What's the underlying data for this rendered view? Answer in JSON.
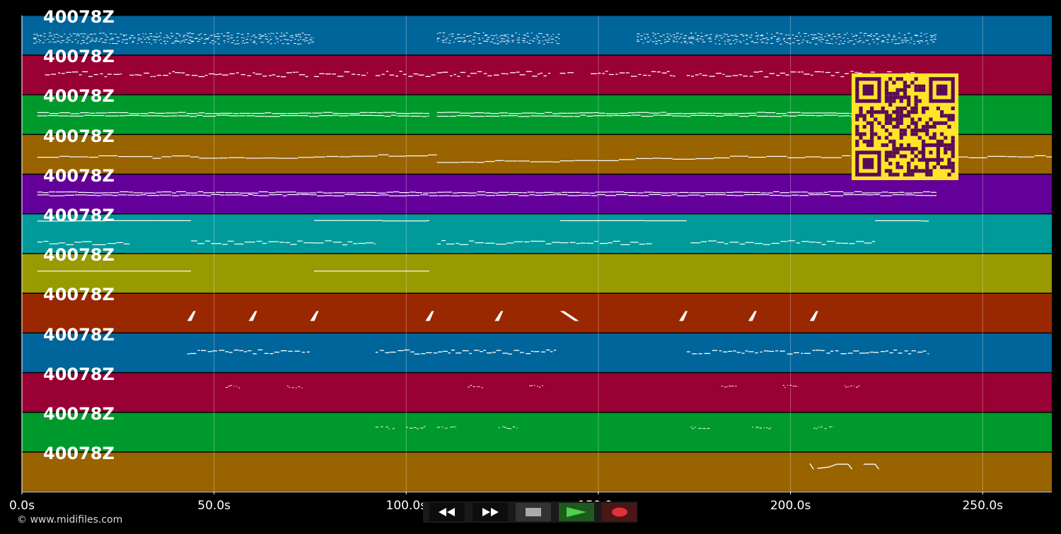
{
  "tracks": [
    {
      "label": "40078Z",
      "color": "#00659a"
    },
    {
      "label": "40078Z",
      "color": "#990033"
    },
    {
      "label": "40078Z",
      "color": "#009a2c"
    },
    {
      "label": "40078Z",
      "color": "#996300"
    },
    {
      "label": "40078Z",
      "color": "#64009a"
    },
    {
      "label": "40078Z",
      "color": "#009a9a"
    },
    {
      "label": "40078Z",
      "color": "#999900"
    },
    {
      "label": "40078Z",
      "color": "#992800"
    },
    {
      "label": "40078Z",
      "color": "#00659a"
    },
    {
      "label": "40078Z",
      "color": "#990033"
    },
    {
      "label": "40078Z",
      "color": "#009a2c"
    },
    {
      "label": "40078Z",
      "color": "#996300"
    }
  ],
  "timeline": {
    "ticks": [
      "0.0s",
      "50.0s",
      "100.0s",
      "150.0s",
      "200.0s",
      "250.0s"
    ]
  },
  "copyright": "© www.midifiles.com",
  "controls": {
    "rewind": "rewind-icon",
    "fast_forward": "fast-forward-icon",
    "stop": "stop-icon",
    "play": "play-icon",
    "record": "record-icon"
  },
  "qr_colors": {
    "fg": "#5a0b57",
    "bg": "#ffe52a"
  }
}
